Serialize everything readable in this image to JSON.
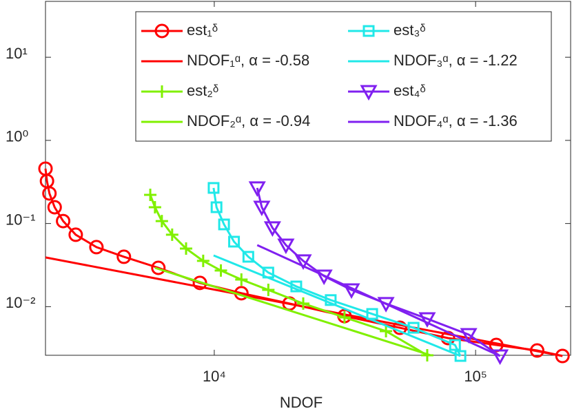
{
  "chart_data": {
    "type": "line",
    "xlabel": "NDOF",
    "xlog": true,
    "ylog": true,
    "xlim": [
      2260,
      231000
    ],
    "ylim": [
      0.0026,
      47
    ],
    "xticks": [
      {
        "value": 10000,
        "label": "10⁴"
      },
      {
        "value": 100000,
        "label": "10⁵"
      }
    ],
    "yticks": [
      {
        "value": 0.01,
        "label": "10⁻²"
      },
      {
        "value": 0.1,
        "label": "10⁻¹"
      },
      {
        "value": 1,
        "label": "10⁰"
      },
      {
        "value": 10,
        "label": "10¹"
      }
    ],
    "series": [
      {
        "name": "est₁ᵟ",
        "color": "#ff0000",
        "marker": "circle",
        "x": [
          2260,
          2290,
          2340,
          2450,
          2640,
          2950,
          3540,
          4510,
          6110,
          8810,
          12700,
          19400,
          31500,
          51300,
          78400,
          120000,
          172000,
          215000
        ],
        "values": [
          0.457,
          0.324,
          0.23,
          0.157,
          0.107,
          0.0733,
          0.052,
          0.0398,
          0.0293,
          0.0193,
          0.0145,
          0.0109,
          0.0077,
          0.00557,
          0.00419,
          0.00346,
          0.00297,
          0.00255
        ]
      },
      {
        "name": "NDOF₁ᵅ, α = -0.58",
        "color": "#ff0000",
        "marker": "none",
        "x": [
          2260,
          215000
        ],
        "values": [
          0.0391,
          0.00255
        ]
      },
      {
        "name": "est₂ᵟ",
        "color": "#80f000",
        "marker": "plus",
        "x": [
          5690,
          5930,
          6300,
          6900,
          7800,
          9070,
          10600,
          12700,
          16100,
          21900,
          31500,
          45400,
          65300
        ],
        "values": [
          0.221,
          0.157,
          0.107,
          0.0733,
          0.05,
          0.0355,
          0.0272,
          0.0212,
          0.0159,
          0.0109,
          0.00743,
          0.00507,
          0.0026
        ]
      },
      {
        "name": "NDOF₂ᵅ, α = -0.94",
        "color": "#80f000",
        "marker": "none",
        "x": [
          5930,
          67300
        ],
        "values": [
          0.0293,
          0.0026
        ]
      },
      {
        "name": "est₃ᵟ",
        "color": "#20e8e8",
        "marker": "square",
        "x": [
          9940,
          10200,
          10900,
          11900,
          13500,
          16100,
          20600,
          27900,
          40200,
          57900,
          83400,
          87500
        ],
        "values": [
          0.268,
          0.157,
          0.0975,
          0.0605,
          0.0398,
          0.0257,
          0.0175,
          0.012,
          0.00817,
          0.00557,
          0.00346,
          0.00255
        ]
      },
      {
        "name": "NDOF₃ᵅ, α = -1.22",
        "color": "#20e8e8",
        "marker": "none",
        "x": [
          9940,
          87500
        ],
        "values": [
          0.0413,
          0.00255
        ]
      },
      {
        "name": "est₄ᵟ",
        "color": "#8020f0",
        "marker": "triangle",
        "x": [
          14600,
          15200,
          16700,
          18800,
          21900,
          26300,
          33500,
          45400,
          65300,
          94100,
          124000
        ],
        "values": [
          0.268,
          0.157,
          0.0887,
          0.055,
          0.0355,
          0.0233,
          0.0159,
          0.0109,
          0.00715,
          0.00461,
          0.00255
        ]
      },
      {
        "name": "NDOF₄ᵅ, α = -1.36",
        "color": "#8020f0",
        "marker": "none",
        "x": [
          14600,
          124000
        ],
        "values": [
          0.055,
          0.00255
        ]
      }
    ]
  }
}
